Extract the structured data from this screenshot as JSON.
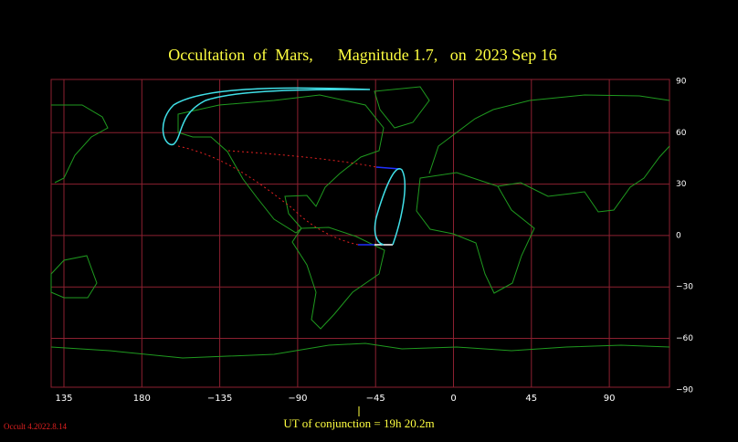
{
  "title": "Occultation  of  Mars,      Magnitude 1.7,   on  2023 Sep 16",
  "map": {
    "longitude_labels": [
      "135",
      "180",
      "−135",
      "−90",
      "−45",
      "0",
      "45",
      "90"
    ],
    "latitude_labels": [
      "90",
      "60",
      "30",
      "0",
      "−30",
      "−60",
      "−90"
    ]
  },
  "footer": {
    "conjunction": "UT of conjunction = 19h 20.2m",
    "version": "Occult 4.2022.8.14"
  }
}
